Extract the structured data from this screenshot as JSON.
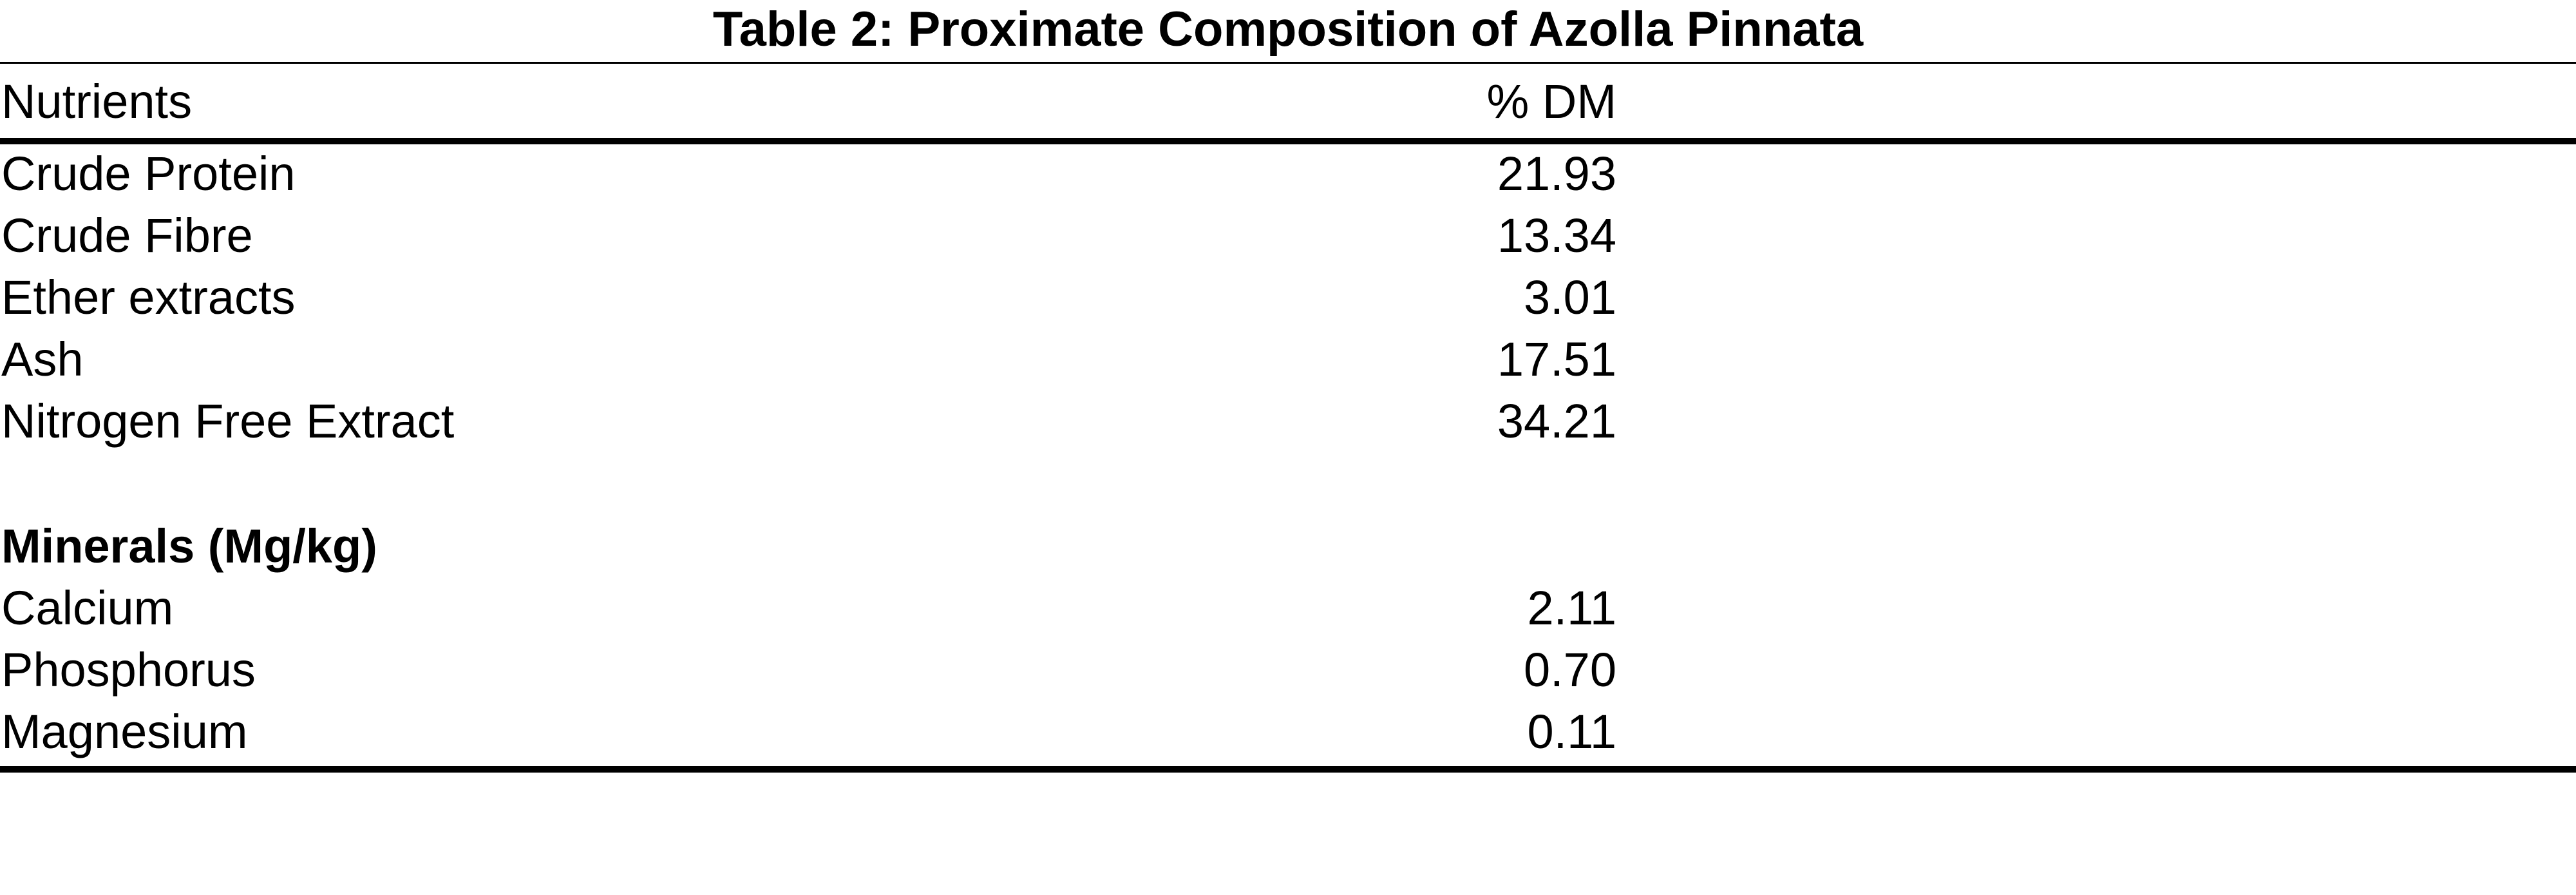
{
  "title": "Table 2: Proximate Composition of Azolla Pinnata",
  "table": {
    "header": [
      "Nutrients",
      "% DM"
    ],
    "rows": [
      [
        "Crude Protein",
        "21.93"
      ],
      [
        "Crude Fibre",
        "13.34"
      ],
      [
        "Ether extracts",
        "3.01"
      ],
      [
        "Ash",
        "17.51"
      ],
      [
        "Nitrogen Free Extract",
        "34.21"
      ]
    ],
    "section": "Minerals (Mg/kg)",
    "section_rows": [
      [
        "Calcium",
        "2.11"
      ],
      [
        "Phosphorus",
        "0.70"
      ],
      [
        "Magnesium",
        "0.11"
      ]
    ]
  }
}
